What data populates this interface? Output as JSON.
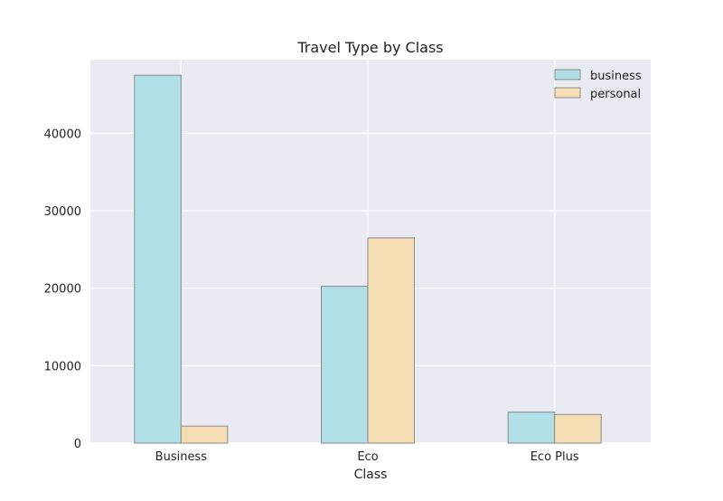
{
  "chart_data": {
    "type": "bar",
    "title": "Travel Type by Class",
    "xlabel": "Class",
    "ylabel": "",
    "categories": [
      "Business",
      "Eco",
      "Eco Plus"
    ],
    "series": [
      {
        "name": "business",
        "values": [
          47500,
          20250,
          4000
        ],
        "color": "#b0dfe5"
      },
      {
        "name": "personal",
        "values": [
          2200,
          26500,
          3700
        ],
        "color": "#f5deb3"
      }
    ],
    "ylim": [
      0,
      49500
    ],
    "yticks": [
      0,
      10000,
      20000,
      30000,
      40000
    ],
    "ytick_labels": [
      "0",
      "10000",
      "20000",
      "30000",
      "40000"
    ],
    "grid": true,
    "legend_position": "top-right",
    "background_color": "#eaeaf2",
    "grid_color": "#ffffff",
    "bar_edge_color": "#8a8a8a"
  }
}
